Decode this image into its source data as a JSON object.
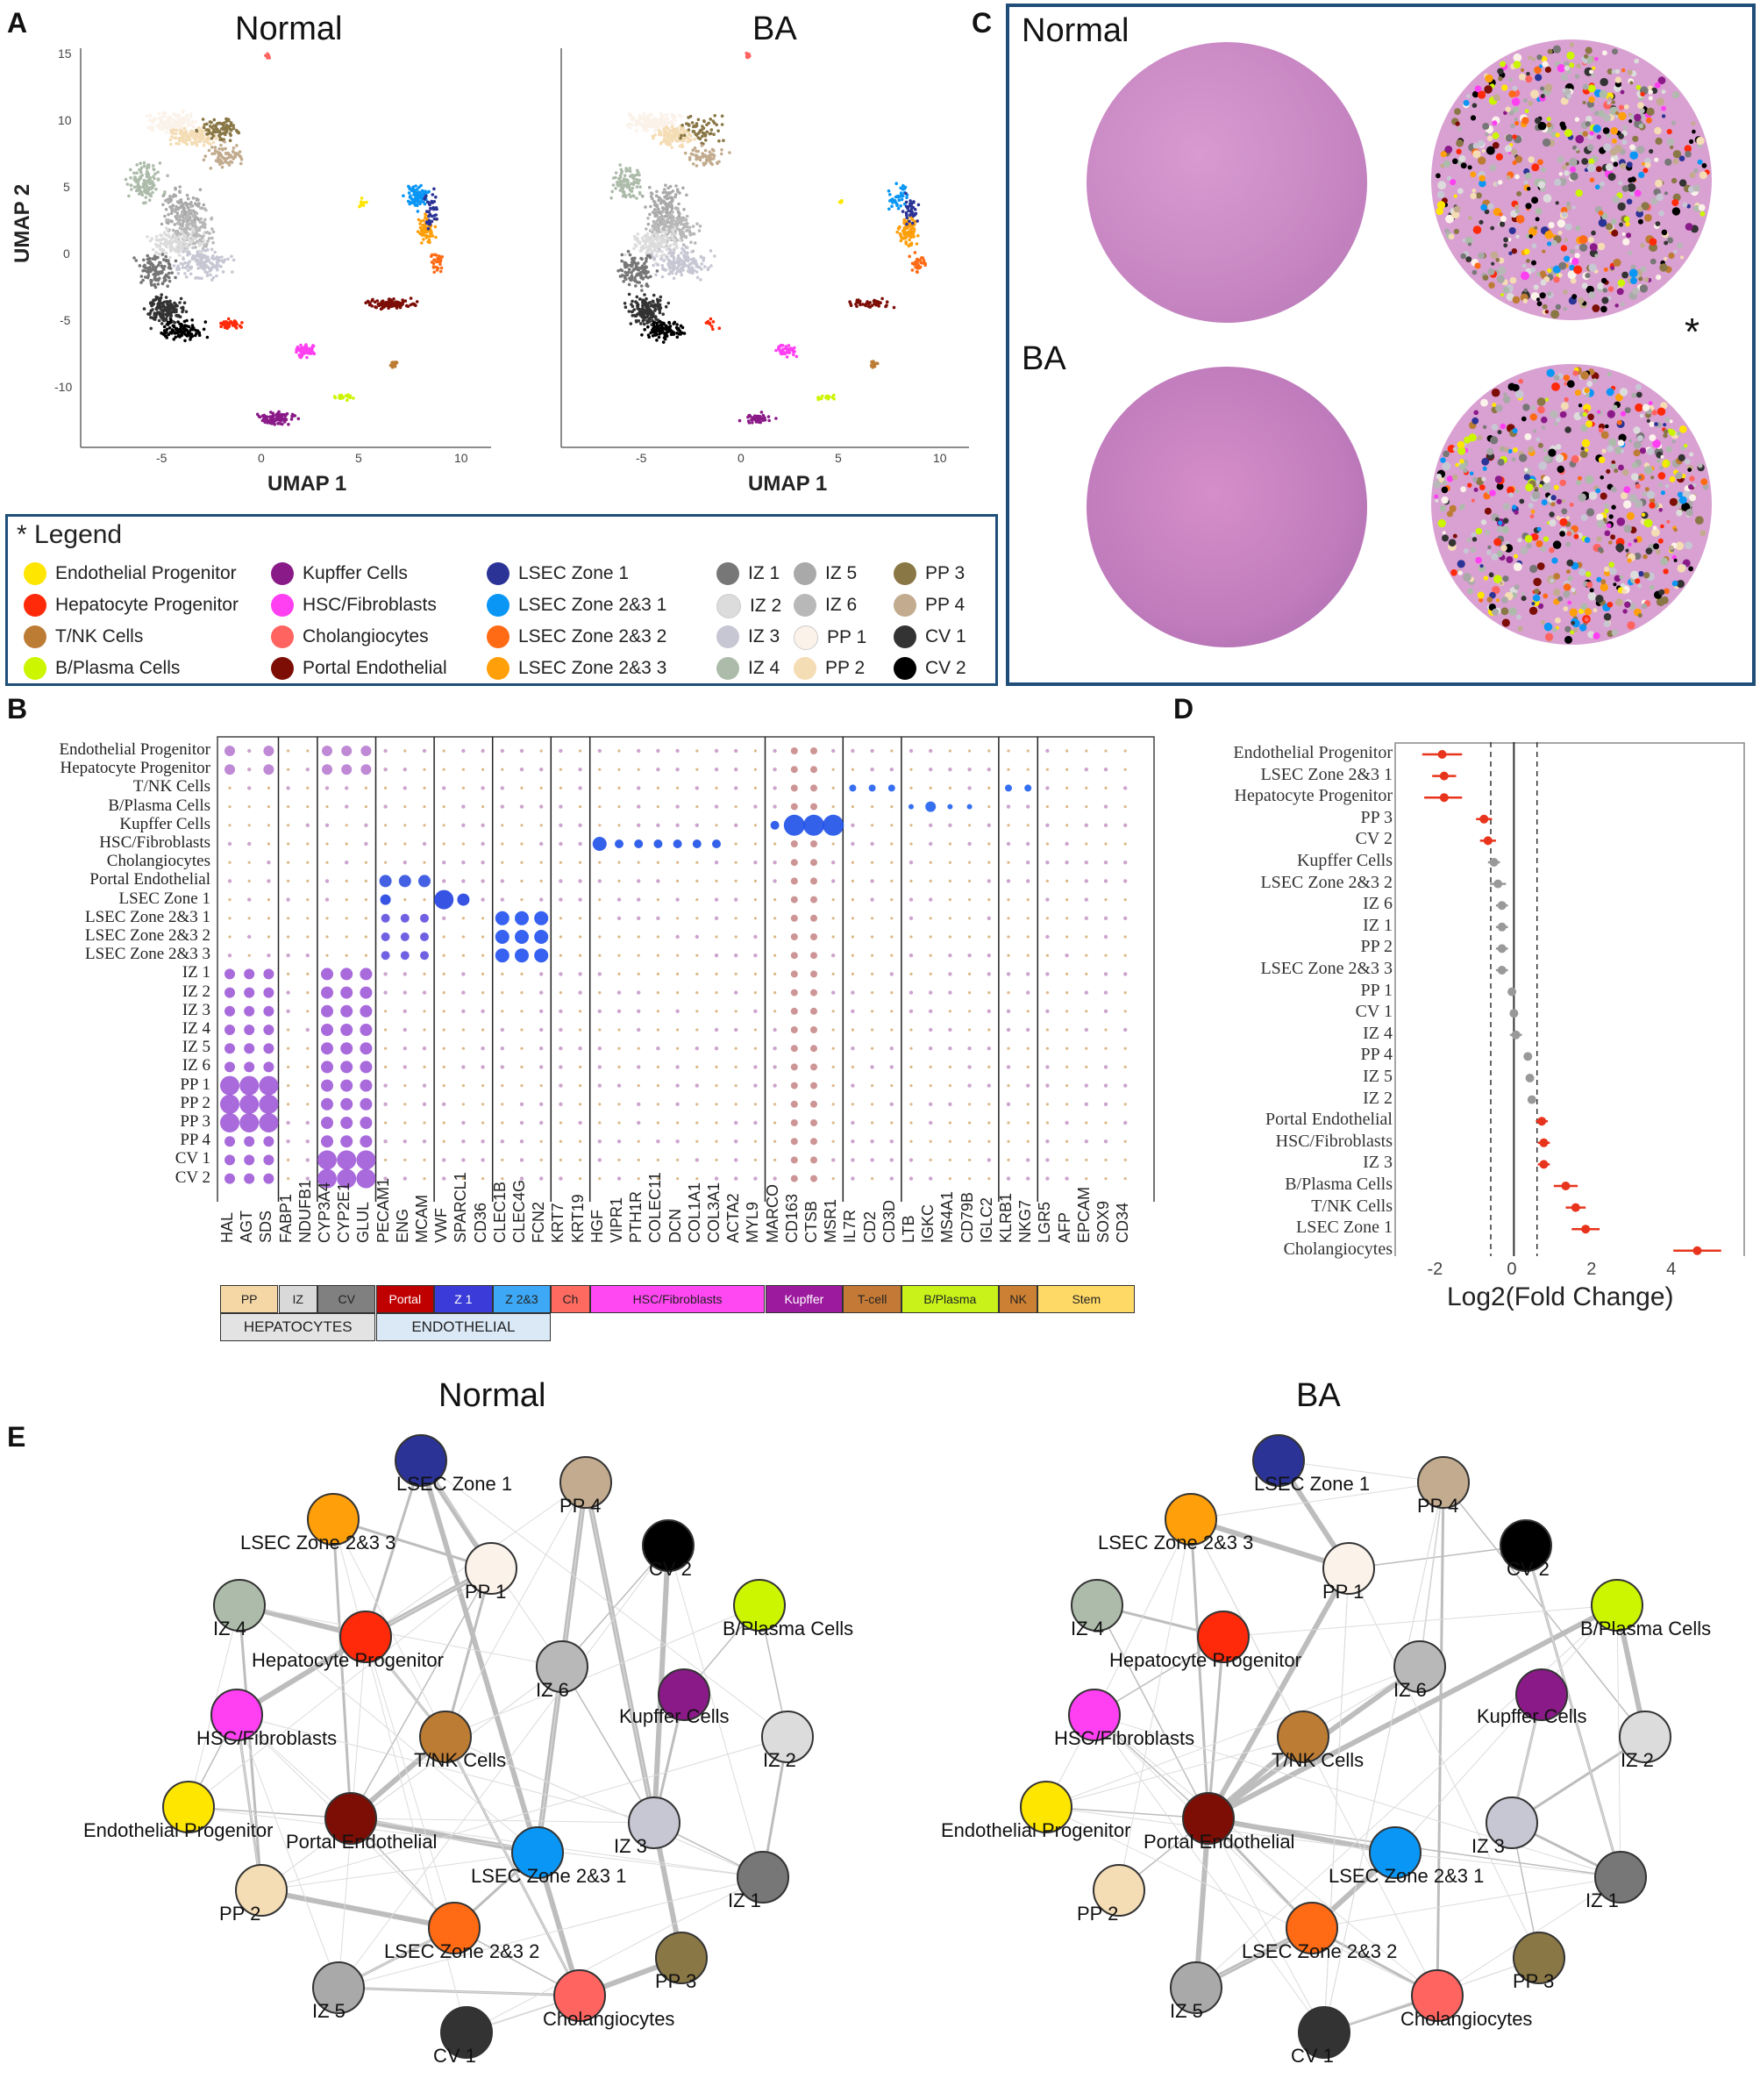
{
  "panels": {
    "a": "A",
    "b": "B",
    "c": "C",
    "d": "D",
    "e": "E"
  },
  "panelA": {
    "titles": [
      "Normal",
      "BA"
    ],
    "xlabel": "UMAP 1",
    "ylabel": "UMAP 2",
    "yticks": [
      "15",
      "10",
      "5",
      "0",
      "-5",
      "-10"
    ],
    "xticks": [
      "-5",
      "0",
      "5",
      "10"
    ]
  },
  "legend": {
    "title": "* Legend",
    "items": [
      {
        "label": "Endothelial Progenitor",
        "color": "#ffe600"
      },
      {
        "label": "Hepatocyte Progenitor",
        "color": "#ff2a0a"
      },
      {
        "label": "T/NK Cells",
        "color": "#bd7c34"
      },
      {
        "label": "B/Plasma Cells",
        "color": "#ccf500"
      },
      {
        "label": "Kupffer Cells",
        "color": "#8a1a88"
      },
      {
        "label": "HSC/Fibroblasts",
        "color": "#ff3ff2"
      },
      {
        "label": "Cholangiocytes",
        "color": "#ff6460"
      },
      {
        "label": "Portal Endothelial",
        "color": "#7c0e06"
      },
      {
        "label": "LSEC Zone 1",
        "color": "#2b3396"
      },
      {
        "label": "LSEC Zone 2&3 1",
        "color": "#0a96f5"
      },
      {
        "label": "LSEC Zone 2&3 2",
        "color": "#ff6a14"
      },
      {
        "label": "LSEC Zone 2&3 3",
        "color": "#ff9f0a"
      },
      {
        "label": "IZ 1",
        "color": "#777777"
      },
      {
        "label": "IZ 2",
        "color": "#dcdcdc"
      },
      {
        "label": "IZ 3",
        "color": "#c7c7d4"
      },
      {
        "label": "IZ 4",
        "color": "#adbcaa"
      },
      {
        "label": "IZ 5",
        "color": "#a9a9a9"
      },
      {
        "label": "IZ 6",
        "color": "#b8b8b8"
      },
      {
        "label": "PP 1",
        "color": "#fbf2ea"
      },
      {
        "label": "PP 2",
        "color": "#f4dcb4"
      },
      {
        "label": "PP 3",
        "color": "#8a7746"
      },
      {
        "label": "PP 4",
        "color": "#c2ab8e"
      },
      {
        "label": "CV 1",
        "color": "#333333"
      },
      {
        "label": "CV 2",
        "color": "#000000"
      }
    ]
  },
  "panelC": {
    "normal_label": "Normal",
    "ba_label": "BA",
    "asterisk": "*"
  },
  "panelB": {
    "rows": [
      "Endothelial Progenitor",
      "Hepatocyte Progenitor",
      "T/NK Cells",
      "B/Plasma Cells",
      "Kupffer Cells",
      "HSC/Fibroblasts",
      "Cholangiocytes",
      "Portal Endothelial",
      "LSEC Zone 1",
      "LSEC Zone 2&3 1",
      "LSEC Zone 2&3 2",
      "LSEC Zone 2&3 3",
      "IZ 1",
      "IZ 2",
      "IZ 3",
      "IZ 4",
      "IZ 5",
      "IZ 6",
      "PP 1",
      "PP 2",
      "PP 3",
      "PP 4",
      "CV 1",
      "CV 2"
    ],
    "genes": [
      "HAL",
      "AGT",
      "SDS",
      "FABP1",
      "NDUFB1",
      "CYP3A4",
      "CYP2E1",
      "GLUL",
      "PECAM1",
      "ENG",
      "MCAM",
      "VWF",
      "SPARCL1",
      "CD36",
      "CLEC1B",
      "CLEC4G",
      "FCN2",
      "KRT7",
      "KRT19",
      "HGF",
      "VIPR1",
      "PTH1R",
      "COLEC11",
      "DCN",
      "COL1A1",
      "COL3A1",
      "ACTA2",
      "MYL9",
      "MARCO",
      "CD163",
      "CTSB",
      "MSR1",
      "IL7R",
      "CD2",
      "CD3D",
      "LTB",
      "IGKC",
      "MS4A1",
      "CD79B",
      "IGLC2",
      "KLRB1",
      "NKG7",
      "LGR5",
      "AFP",
      "EPCAM",
      "SOX9",
      "CD34"
    ],
    "groups": [
      {
        "label": "PP",
        "color": "#f5d7a6"
      },
      {
        "label": "IZ",
        "color": "#d9d9d9"
      },
      {
        "label": "CV",
        "color": "#808080"
      },
      {
        "label": "Portal",
        "color": "#c00000"
      },
      {
        "label": "Z 1",
        "color": "#3b3bd9"
      },
      {
        "label": "Z 2&3",
        "color": "#3da8f5"
      },
      {
        "label": "Ch",
        "color": "#ff6a60"
      },
      {
        "label": "HSC/Fibroblasts",
        "color": "#ff47f2"
      },
      {
        "label": "Kupffer",
        "color": "#9c1a9e"
      },
      {
        "label": "T-cell",
        "color": "#c47a36"
      },
      {
        "label": "B/Plasma",
        "color": "#c8f21a"
      },
      {
        "label": "NK",
        "color": "#cc8033"
      },
      {
        "label": "Stem",
        "color": "#ffd966"
      }
    ],
    "supergroups": [
      {
        "label": "HEPATOCYTES",
        "color": "#e3e3e3"
      },
      {
        "label": "ENDOTHELIAL",
        "color": "#dbe9f7"
      }
    ]
  },
  "chart_data": {
    "type": "scatter",
    "title": "",
    "xlabel": "Log2(Fold Change)",
    "ylabel": "",
    "xlim": [
      -3,
      5.8
    ],
    "xticks": [
      "-2",
      "0",
      "2",
      "4"
    ],
    "categories": [
      "Endothelial Progenitor",
      "LSEC Zone 2&3 1",
      "Hepatocyte Progenitor",
      "PP 3",
      "CV 2",
      "Kupffer Cells",
      "LSEC Zone 2&3 2",
      "IZ 6",
      "IZ 1",
      "PP 2",
      "LSEC Zone 2&3 3",
      "PP 1",
      "CV 1",
      "IZ 4",
      "PP 4",
      "IZ 5",
      "IZ 2",
      "Portal Endothelial",
      "HSC/Fibroblasts",
      "IZ 3",
      "B/Plasma Cells",
      "T/NK Cells",
      "LSEC Zone 1",
      "Cholangiocytes"
    ],
    "values": [
      -1.8,
      -1.75,
      -1.75,
      -0.75,
      -0.65,
      -0.5,
      -0.4,
      -0.3,
      -0.3,
      -0.3,
      -0.3,
      -0.05,
      0.0,
      0.05,
      0.35,
      0.4,
      0.45,
      0.7,
      0.75,
      0.75,
      1.3,
      1.55,
      1.8,
      4.6
    ],
    "err_low": [
      -2.3,
      -2.05,
      -2.25,
      -0.95,
      -0.85,
      -0.65,
      -0.6,
      -0.45,
      -0.45,
      -0.45,
      -0.45,
      -0.15,
      -0.1,
      -0.1,
      0.25,
      0.3,
      0.35,
      0.55,
      0.6,
      0.6,
      1.0,
      1.3,
      1.45,
      4.0
    ],
    "err_high": [
      -1.3,
      -1.45,
      -1.3,
      -0.55,
      -0.45,
      -0.35,
      -0.2,
      -0.15,
      -0.15,
      -0.15,
      -0.15,
      0.05,
      0.1,
      0.2,
      0.45,
      0.5,
      0.55,
      0.85,
      0.9,
      0.9,
      1.6,
      1.8,
      2.15,
      5.2
    ],
    "significant": [
      true,
      true,
      true,
      true,
      true,
      false,
      false,
      false,
      false,
      false,
      false,
      false,
      false,
      false,
      false,
      false,
      false,
      true,
      true,
      true,
      true,
      true,
      true,
      true
    ],
    "vlines": [
      -0.58,
      0,
      0.58
    ]
  },
  "panelE": {
    "normal_title": "Normal",
    "ba_title": "BA"
  }
}
